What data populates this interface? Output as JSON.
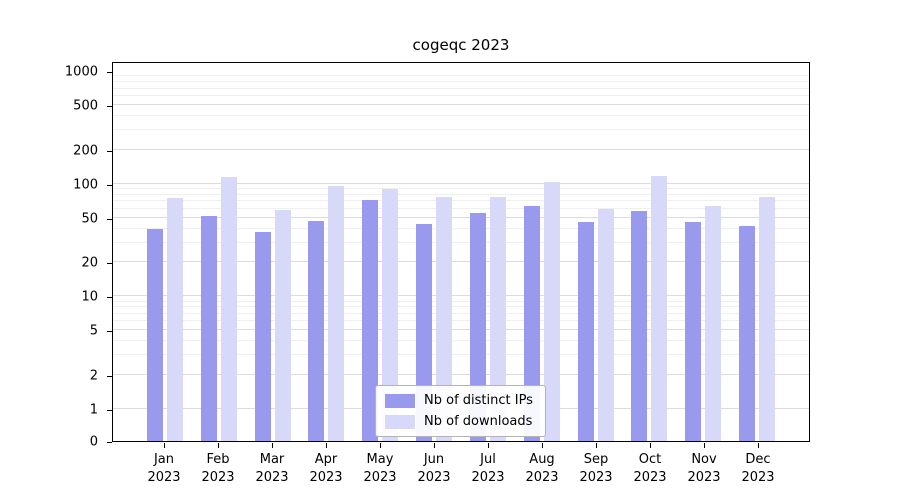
{
  "chart_data": {
    "type": "bar",
    "title": "cogeqc 2023",
    "categories": [
      "Jan",
      "Feb",
      "Mar",
      "Apr",
      "May",
      "Jun",
      "Jul",
      "Aug",
      "Sep",
      "Oct",
      "Nov",
      "Dec"
    ],
    "xlabel_line2": "2023",
    "series": [
      {
        "name": "Nb of distinct IPs",
        "color": "#9999ee",
        "values": [
          40,
          52,
          37,
          47,
          72,
          44,
          55,
          63,
          46,
          57,
          46,
          42
        ]
      },
      {
        "name": "Nb of downloads",
        "color": "#d8d8f8",
        "values": [
          75,
          115,
          58,
          96,
          89,
          76,
          77,
          103,
          60,
          118,
          63,
          76
        ]
      }
    ],
    "yscale": "symlog",
    "yticks": [
      0,
      1,
      2,
      5,
      10,
      20,
      50,
      100,
      200,
      500,
      1000
    ],
    "ylim": [
      0,
      1000
    ],
    "grid": true,
    "legend_position": "lower center"
  }
}
